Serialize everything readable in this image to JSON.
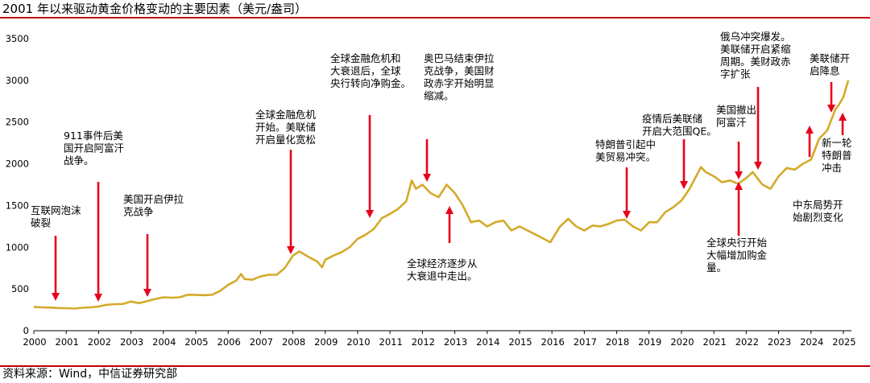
{
  "title": "2001 年以来驱动黄金价格变动的主要因素（美元/盎司）",
  "source": "资料来源：Wind，中信证券研究部",
  "colors": {
    "line": "#d4aa2a",
    "arrow": "#e8001c",
    "rule": "#c00000"
  },
  "chart_data": {
    "type": "line",
    "title": "2001 年以来驱动黄金价格变动的主要因素（美元/盎司）",
    "xlabel": "",
    "ylabel": "",
    "xlim": [
      2000,
      2025.25
    ],
    "ylim": [
      0,
      3500
    ],
    "yticks": [
      "0",
      "500",
      "1000",
      "1500",
      "2000",
      "2500",
      "3000",
      "3500"
    ],
    "xticks": [
      "2000",
      "2001",
      "2002",
      "2003",
      "2004",
      "2005",
      "2006",
      "2007",
      "2008",
      "2009",
      "2010",
      "2011",
      "2012",
      "2013",
      "2014",
      "2015",
      "2016",
      "2017",
      "2018",
      "2019",
      "2020",
      "2021",
      "2022",
      "2023",
      "2024",
      "2025"
    ],
    "grid": false,
    "series": [
      {
        "x": [
          2000.0,
          2000.25,
          2000.5,
          2000.75,
          2001.0,
          2001.25,
          2001.5,
          2001.75,
          2002.0,
          2002.25,
          2002.5,
          2002.75,
          2003.0,
          2003.25,
          2003.5,
          2003.75,
          2004.0,
          2004.25,
          2004.5,
          2004.75,
          2005.0,
          2005.25,
          2005.5,
          2005.75,
          2006.0,
          2006.25,
          2006.4,
          2006.5,
          2006.75,
          2007.0,
          2007.25,
          2007.5,
          2007.75,
          2008.0,
          2008.2,
          2008.5,
          2008.75,
          2008.9,
          2009.0,
          2009.25,
          2009.5,
          2009.75,
          2010.0,
          2010.25,
          2010.5,
          2010.75,
          2011.0,
          2011.25,
          2011.5,
          2011.67,
          2011.8,
          2012.0,
          2012.25,
          2012.5,
          2012.75,
          2013.0,
          2013.25,
          2013.5,
          2013.75,
          2014.0,
          2014.25,
          2014.5,
          2014.75,
          2015.0,
          2015.25,
          2015.5,
          2015.75,
          2015.95,
          2016.25,
          2016.5,
          2016.75,
          2017.0,
          2017.25,
          2017.5,
          2017.75,
          2018.0,
          2018.25,
          2018.5,
          2018.75,
          2019.0,
          2019.25,
          2019.5,
          2019.75,
          2020.0,
          2020.25,
          2020.6,
          2020.75,
          2021.0,
          2021.25,
          2021.5,
          2021.75,
          2022.0,
          2022.2,
          2022.5,
          2022.75,
          2023.0,
          2023.25,
          2023.5,
          2023.75,
          2024.0,
          2024.25,
          2024.5,
          2024.75,
          2024.85,
          2025.0,
          2025.15
        ],
        "values": [
          285,
          280,
          278,
          272,
          270,
          265,
          275,
          280,
          290,
          310,
          318,
          320,
          350,
          330,
          355,
          380,
          400,
          395,
          400,
          430,
          430,
          425,
          430,
          475,
          550,
          600,
          680,
          620,
          610,
          650,
          670,
          670,
          750,
          900,
          950,
          880,
          830,
          760,
          850,
          900,
          940,
          1000,
          1100,
          1150,
          1220,
          1350,
          1400,
          1460,
          1550,
          1800,
          1700,
          1750,
          1650,
          1600,
          1750,
          1650,
          1500,
          1300,
          1320,
          1250,
          1300,
          1320,
          1200,
          1250,
          1200,
          1150,
          1100,
          1060,
          1250,
          1340,
          1250,
          1200,
          1260,
          1250,
          1280,
          1320,
          1330,
          1250,
          1200,
          1300,
          1300,
          1420,
          1480,
          1560,
          1700,
          1960,
          1900,
          1850,
          1780,
          1800,
          1760,
          1830,
          1900,
          1750,
          1700,
          1850,
          1950,
          1930,
          2000,
          2050,
          2300,
          2400,
          2650,
          2700,
          2800,
          3000
        ]
      }
    ],
    "annotations": [
      {
        "lines": [
          "互联网泡沫",
          "破裂"
        ]
      },
      {
        "lines": [
          "911事件后美",
          "国开启阿富汗",
          "战争。"
        ]
      },
      {
        "lines": [
          "美国开启伊拉",
          "克战争"
        ]
      },
      {
        "lines": [
          "全球金融危机",
          "开始。美联储",
          "开启量化宽松"
        ]
      },
      {
        "lines": [
          "全球金融危机和",
          "大衰退后，全球",
          "央行转向净购金。"
        ]
      },
      {
        "lines": [
          "奥巴马结束伊拉",
          "克战争，美国财",
          "政赤字开始明显",
          "缩减。"
        ]
      },
      {
        "lines": [
          "全球经济逐步从",
          "大衰退中走出。"
        ]
      },
      {
        "lines": [
          "特朗普引起中",
          "美贸易冲突。"
        ]
      },
      {
        "lines": [
          "疫情后美联储",
          "开启大范围QE。"
        ]
      },
      {
        "lines": [
          "美国撤出",
          "阿富汗"
        ]
      },
      {
        "lines": [
          "全球央行开始",
          "大幅增加购金",
          "量。"
        ]
      },
      {
        "lines": [
          "俄乌冲突爆发。",
          "美联储开启紧缩",
          "周期。美财政赤",
          "字扩张"
        ]
      },
      {
        "lines": [
          "中东局势开",
          "始剧烈变化"
        ]
      },
      {
        "lines": [
          "美联储开",
          "启降息"
        ]
      },
      {
        "lines": [
          "新一轮",
          "特朗普",
          "冲击"
        ]
      }
    ]
  }
}
